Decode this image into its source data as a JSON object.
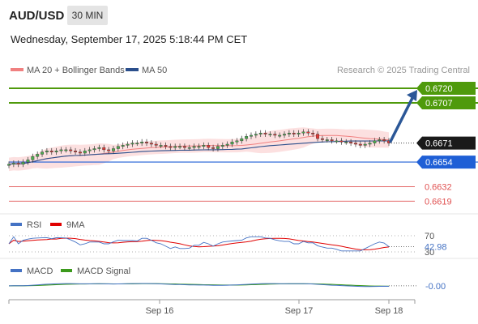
{
  "header": {
    "symbol": "AUD/USD",
    "timeframe": "30 MIN",
    "datetime": "Wednesday, September 17, 2025 5:18:44 PM CET"
  },
  "credit": "Research © 2025 Trading Central",
  "colors": {
    "ma20": "#f08080",
    "ma50": "#2b4f8c",
    "resistance": "#4f9a0c",
    "pivot": "#1f5fd6",
    "support": "#e05050",
    "candle_up": "#4caf50",
    "candle_down": "#e53935",
    "arrow": "#2b5797",
    "rsi": "#4472c4",
    "rsi_ma": "#e00000",
    "macd": "#4472c4",
    "macd_signal": "#3c9a1c"
  },
  "chart_data": [
    {
      "type": "candlestick",
      "legend": [
        "MA 20 + Bollinger Bands",
        "MA 50"
      ],
      "ylim": [
        0.6612,
        0.6728
      ],
      "x_ticks": [
        "Sep 16",
        "Sep 17",
        "Sep 18"
      ],
      "levels": [
        {
          "value": 0.672,
          "label": "0.6720",
          "kind": "resistance"
        },
        {
          "value": 0.6707,
          "label": "0.6707",
          "kind": "resistance"
        },
        {
          "value": 0.6671,
          "label": "0.6671",
          "kind": "last"
        },
        {
          "value": 0.6654,
          "label": "0.6654",
          "kind": "pivot"
        },
        {
          "value": 0.6632,
          "label": "0.6632",
          "kind": "support"
        },
        {
          "value": 0.6619,
          "label": "0.6619",
          "kind": "support"
        }
      ],
      "close": [
        0.6652,
        0.6653,
        0.6652,
        0.6654,
        0.6656,
        0.6659,
        0.6661,
        0.6663,
        0.6664,
        0.6663,
        0.6664,
        0.6665,
        0.6665,
        0.6664,
        0.6663,
        0.6662,
        0.6664,
        0.6665,
        0.6666,
        0.6667,
        0.6665,
        0.6664,
        0.6666,
        0.6668,
        0.6669,
        0.667,
        0.6671,
        0.6671,
        0.6672,
        0.6671,
        0.667,
        0.6669,
        0.6669,
        0.6668,
        0.6667,
        0.6668,
        0.6668,
        0.6667,
        0.6667,
        0.6668,
        0.6668,
        0.6669,
        0.6667,
        0.6666,
        0.6668,
        0.6669,
        0.667,
        0.6672,
        0.6673,
        0.6675,
        0.6677,
        0.6678,
        0.6679,
        0.668,
        0.6679,
        0.6679,
        0.6678,
        0.6678,
        0.6679,
        0.668,
        0.6679,
        0.668,
        0.6681,
        0.668,
        0.6679,
        0.6675,
        0.6674,
        0.6674,
        0.6673,
        0.6673,
        0.6672,
        0.6672,
        0.6671,
        0.667,
        0.6669,
        0.667,
        0.6671,
        0.6673,
        0.6674,
        0.6673,
        0.6671
      ],
      "ma20_last": 0.6674,
      "ma50_last": 0.6673
    },
    {
      "type": "line",
      "legend": [
        "RSI",
        "9MA"
      ],
      "ylim": [
        20,
        80
      ],
      "levels": [
        {
          "value": 70,
          "label": "70"
        },
        {
          "value": 30,
          "label": "30"
        }
      ],
      "last_label": "42.98",
      "rsi_last": 42.98
    },
    {
      "type": "line",
      "legend": [
        "MACD",
        "MACD Signal"
      ],
      "ylim": [
        -0.0016,
        0.0012
      ],
      "last_label": "-0.00",
      "macd_last": 0.0
    }
  ]
}
